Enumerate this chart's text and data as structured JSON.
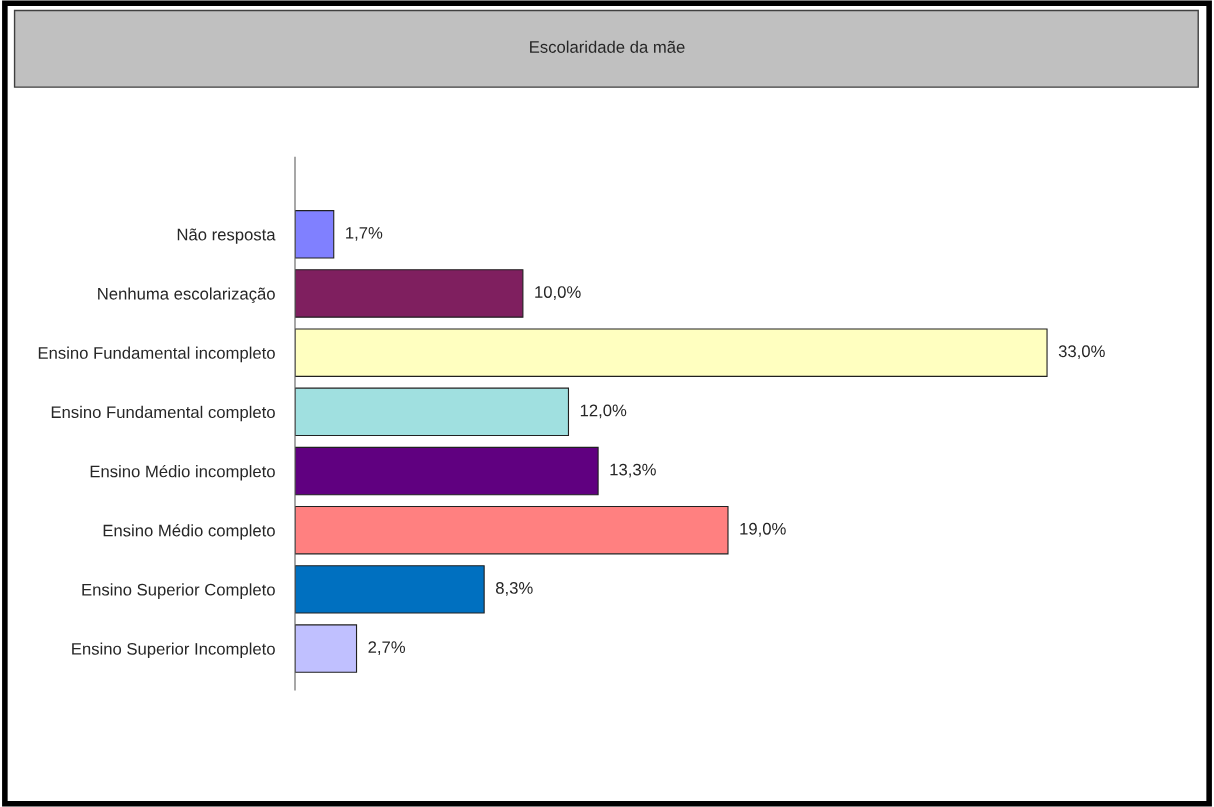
{
  "chart_data": {
    "type": "bar",
    "orientation": "horizontal",
    "title": "Escolaridade da mãe",
    "categories": [
      "Não resposta",
      "Nenhuma escolarização",
      "Ensino Fundamental incompleto",
      "Ensino Fundamental completo",
      "Ensino Médio incompleto",
      "Ensino Médio completo",
      "Ensino Superior Completo",
      "Ensino Superior Incompleto"
    ],
    "values": [
      1.7,
      10.0,
      33.0,
      12.0,
      13.3,
      19.0,
      8.3,
      2.7
    ],
    "value_labels": [
      "1,7%",
      "10,0%",
      "33,0%",
      "12,0%",
      "13,3%",
      "19,0%",
      "8,3%",
      "2,7%"
    ],
    "colors": [
      "#8080ff",
      "#7f1f5f",
      "#ffffc0",
      "#a0e0e0",
      "#600080",
      "#ff8080",
      "#0070c0",
      "#c0c0ff"
    ],
    "grid": false,
    "legend": false
  }
}
